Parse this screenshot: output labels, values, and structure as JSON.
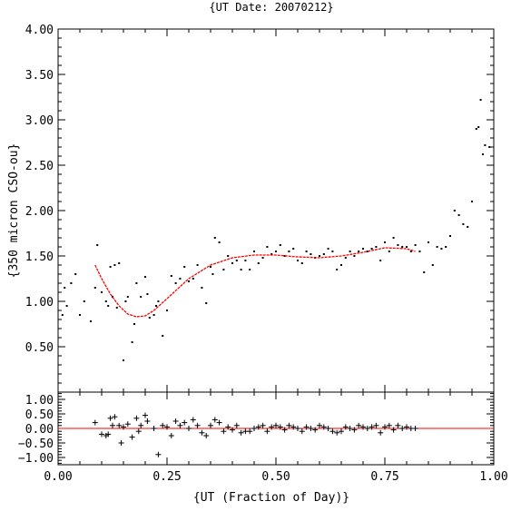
{
  "chart_data": [
    {
      "panel": "main",
      "type": "scatter",
      "title": "{UT Date: 20070212}",
      "xlabel": "",
      "ylabel": "{350 micron CSO-ou}",
      "xlim": [
        0.0,
        1.0
      ],
      "ylim": [
        0.0,
        4.0
      ],
      "x_tick_labels": [],
      "y_tick_labels": [
        "0.50",
        "1.00",
        "1.50",
        "2.00",
        "2.50",
        "3.00",
        "3.50",
        "4.00"
      ],
      "grid": false,
      "series": [
        {
          "style": "points",
          "color": "#000000",
          "x": [
            0.01,
            0.015,
            0.02,
            0.03,
            0.04,
            0.05,
            0.06,
            0.075,
            0.085,
            0.09,
            0.1,
            0.11,
            0.115,
            0.12,
            0.125,
            0.13,
            0.135,
            0.14,
            0.15,
            0.155,
            0.16,
            0.17,
            0.175,
            0.18,
            0.19,
            0.2,
            0.205,
            0.21,
            0.22,
            0.225,
            0.23,
            0.24,
            0.25,
            0.26,
            0.27,
            0.28,
            0.29,
            0.3,
            0.31,
            0.32,
            0.33,
            0.34,
            0.35,
            0.355,
            0.36,
            0.37,
            0.38,
            0.39,
            0.4,
            0.41,
            0.42,
            0.43,
            0.44,
            0.45,
            0.46,
            0.47,
            0.48,
            0.49,
            0.5,
            0.51,
            0.52,
            0.53,
            0.54,
            0.55,
            0.56,
            0.57,
            0.58,
            0.59,
            0.6,
            0.61,
            0.62,
            0.63,
            0.64,
            0.65,
            0.66,
            0.67,
            0.68,
            0.69,
            0.7,
            0.71,
            0.72,
            0.73,
            0.74,
            0.75,
            0.76,
            0.77,
            0.78,
            0.79,
            0.8,
            0.81,
            0.82,
            0.83,
            0.84,
            0.85,
            0.86,
            0.87,
            0.88,
            0.89,
            0.9,
            0.91,
            0.92,
            0.93,
            0.94,
            0.95,
            0.96,
            0.965,
            0.97,
            0.975,
            0.98,
            0.99
          ],
          "y": [
            0.85,
            1.15,
            0.95,
            1.2,
            1.3,
            0.85,
            1.0,
            0.78,
            1.15,
            1.62,
            1.1,
            1.0,
            0.95,
            1.38,
            1.05,
            1.4,
            0.93,
            1.42,
            0.35,
            1.0,
            1.05,
            0.55,
            0.75,
            1.2,
            1.05,
            1.27,
            1.08,
            0.82,
            0.85,
            0.95,
            1.0,
            0.62,
            0.9,
            1.28,
            1.2,
            1.25,
            1.38,
            1.22,
            1.25,
            1.4,
            1.15,
            0.98,
            1.38,
            1.3,
            1.7,
            1.65,
            1.35,
            1.5,
            1.42,
            1.45,
            1.35,
            1.45,
            1.35,
            1.55,
            1.42,
            1.48,
            1.6,
            1.52,
            1.55,
            1.62,
            1.5,
            1.55,
            1.58,
            1.45,
            1.42,
            1.55,
            1.52,
            1.48,
            1.5,
            1.52,
            1.58,
            1.55,
            1.35,
            1.4,
            1.48,
            1.55,
            1.5,
            1.55,
            1.58,
            1.55,
            1.58,
            1.6,
            1.45,
            1.65,
            1.55,
            1.7,
            1.62,
            1.6,
            1.6,
            1.55,
            1.62,
            1.55,
            1.32,
            1.65,
            1.4,
            1.6,
            1.58,
            1.6,
            1.72,
            2.0,
            1.95,
            1.85,
            1.82,
            2.1,
            2.9,
            2.92,
            3.22,
            2.62,
            2.72,
            2.7
          ]
        },
        {
          "style": "fit-line",
          "color": "#ff0000",
          "x": [
            0.085,
            0.1,
            0.12,
            0.14,
            0.16,
            0.18,
            0.2,
            0.22,
            0.25,
            0.3,
            0.35,
            0.4,
            0.45,
            0.5,
            0.55,
            0.6,
            0.65,
            0.7,
            0.75,
            0.8,
            0.82
          ],
          "y": [
            1.4,
            1.25,
            1.08,
            0.95,
            0.86,
            0.83,
            0.84,
            0.9,
            1.03,
            1.25,
            1.4,
            1.48,
            1.51,
            1.51,
            1.49,
            1.48,
            1.5,
            1.54,
            1.59,
            1.58,
            1.55
          ]
        }
      ]
    },
    {
      "panel": "residuals",
      "type": "scatter",
      "xlabel": "{UT (Fraction of Day)}",
      "ylabel": "",
      "xlim": [
        0.0,
        1.0
      ],
      "ylim": [
        -1.25,
        1.25
      ],
      "x_tick_labels": [
        "0.00",
        "0.25",
        "0.50",
        "0.75",
        "1.00"
      ],
      "y_tick_labels": [
        "−1.00",
        "−0.50",
        "0.00",
        "0.50",
        "1.00"
      ],
      "grid": false,
      "reference_line": 0.0,
      "series": [
        {
          "style": "crosses",
          "color": "#000000",
          "x": [
            0.085,
            0.1,
            0.11,
            0.115,
            0.12,
            0.125,
            0.13,
            0.14,
            0.145,
            0.15,
            0.16,
            0.17,
            0.18,
            0.185,
            0.19,
            0.2,
            0.205,
            0.22,
            0.23,
            0.24,
            0.25,
            0.26,
            0.27,
            0.28,
            0.29,
            0.3,
            0.31,
            0.32,
            0.33,
            0.34,
            0.35,
            0.36,
            0.37,
            0.38,
            0.39,
            0.4,
            0.41,
            0.42,
            0.43,
            0.44,
            0.45,
            0.46,
            0.47,
            0.48,
            0.49,
            0.5,
            0.51,
            0.52,
            0.53,
            0.54,
            0.55,
            0.56,
            0.57,
            0.58,
            0.59,
            0.6,
            0.61,
            0.62,
            0.63,
            0.64,
            0.65,
            0.66,
            0.67,
            0.68,
            0.69,
            0.7,
            0.71,
            0.72,
            0.73,
            0.74,
            0.75,
            0.76,
            0.77,
            0.78,
            0.79,
            0.8,
            0.81,
            0.82
          ],
          "y": [
            0.2,
            -0.2,
            -0.25,
            -0.2,
            0.35,
            0.1,
            0.4,
            0.1,
            -0.5,
            0.05,
            0.15,
            -0.3,
            0.35,
            -0.1,
            0.1,
            0.45,
            0.25,
            0.0,
            -0.9,
            0.1,
            0.05,
            -0.25,
            0.25,
            0.1,
            0.2,
            0.0,
            0.3,
            0.1,
            -0.15,
            -0.25,
            0.1,
            0.3,
            0.2,
            -0.1,
            0.05,
            -0.05,
            0.1,
            -0.15,
            -0.1,
            -0.1,
            0.0,
            0.05,
            0.1,
            -0.1,
            0.05,
            0.1,
            0.05,
            -0.05,
            0.1,
            0.05,
            0.0,
            -0.1,
            0.05,
            0.0,
            -0.05,
            0.1,
            0.05,
            0.0,
            -0.1,
            -0.15,
            -0.1,
            0.05,
            0.0,
            -0.05,
            0.1,
            0.05,
            0.0,
            0.05,
            0.1,
            -0.15,
            0.05,
            0.1,
            -0.05,
            0.1,
            0.0,
            0.05,
            0.0,
            0.0
          ]
        }
      ]
    }
  ]
}
